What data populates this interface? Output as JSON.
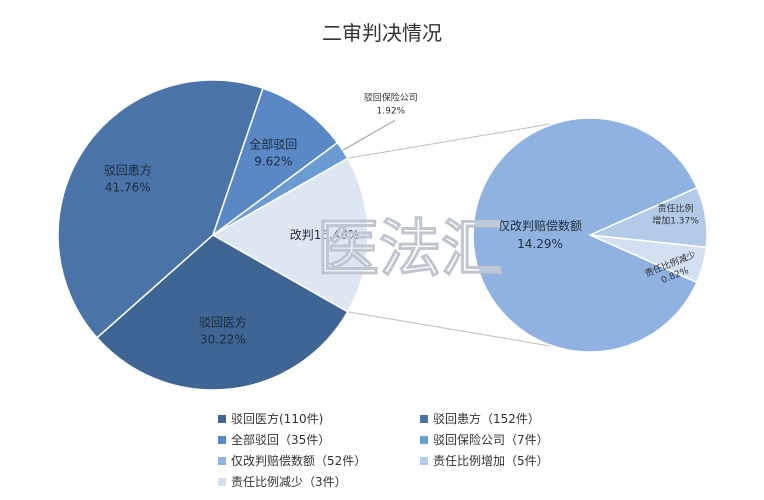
{
  "chart_data": {
    "type": "pie",
    "title": "二审判决情况",
    "main_pie": {
      "slices": [
        {
          "key": "bohui_huanfang",
          "label": "驳回患方",
          "value": 41.76,
          "value_label": "41.76%",
          "color": "#4a73a8"
        },
        {
          "key": "bohui_yifang",
          "label": "驳回医方",
          "value": 30.22,
          "value_label": "30.22%",
          "color": "#3e6593"
        },
        {
          "key": "gaipan",
          "label": "改判",
          "value": 16.48,
          "value_label": "16.48%",
          "color": "#dfe6f3"
        },
        {
          "key": "bohui_baoxian",
          "label": "驳回保险公司",
          "value": 1.92,
          "value_label": "1.92%",
          "color": "#6b9bd3"
        },
        {
          "key": "quanbu_bohui",
          "label": "全部驳回",
          "value": 9.62,
          "value_label": "9.62%",
          "color": "#5a88c4"
        }
      ]
    },
    "sub_pie": {
      "slices": [
        {
          "key": "jin_gaipan",
          "label": "仅改判赔偿数额",
          "value": 14.29,
          "value_label": "14.29%",
          "color": "#8fb2e0"
        },
        {
          "key": "zengjia",
          "label": "责任比例增加",
          "value": 1.37,
          "value_label": "1.37%",
          "color": "#b3cbe9"
        },
        {
          "key": "jianshao",
          "label": "责任比例减少",
          "value": 0.82,
          "value_label": "0.82%",
          "color": "#d3e0f2"
        }
      ]
    },
    "legend": [
      {
        "label": "驳回医方(110件)",
        "color": "#3e6593"
      },
      {
        "label": "驳回患方（152件）",
        "color": "#4a73a8"
      },
      {
        "label": "全部驳回（35件）",
        "color": "#5a88c4"
      },
      {
        "label": "驳回保险公司（7件）",
        "color": "#6b9bd3"
      },
      {
        "label": "仅改判赔偿数额（52件）",
        "color": "#8fb2e0"
      },
      {
        "label": "责任比例增加（5件）",
        "color": "#b3cbe9"
      },
      {
        "label": "责任比例减少（3件）",
        "color": "#d3e0f2"
      }
    ],
    "watermark": "医法汇"
  }
}
